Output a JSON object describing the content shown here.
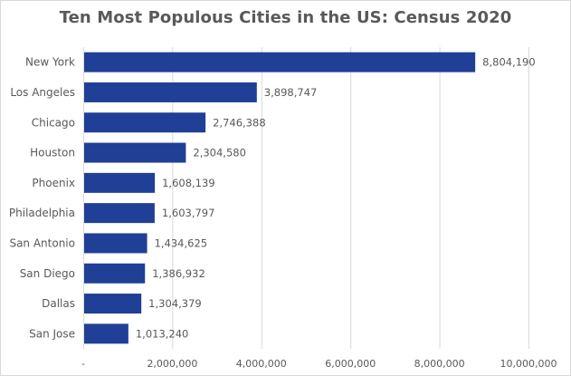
{
  "chart_data": {
    "type": "bar",
    "orientation": "horizontal",
    "title": "Ten Most Populous Cities in the US: Census 2020",
    "categories": [
      "New York",
      "Los Angeles",
      "Chicago",
      "Houston",
      "Phoenix",
      "Philadelphia",
      "San Antonio",
      "San Diego",
      "Dallas",
      "San Jose"
    ],
    "values": [
      8804190,
      3898747,
      2746388,
      2304580,
      1608139,
      1603797,
      1434625,
      1386932,
      1304379,
      1013240
    ],
    "data_labels": [
      "8,804,190",
      "3,898,747",
      "2,746,388",
      "2,304,580",
      "1,608,139",
      "1,603,797",
      "1,434,625",
      "1,386,932",
      "1,304,379",
      "1,013,240"
    ],
    "xlim": [
      0,
      10000000
    ],
    "x_ticks": [
      0,
      2000000,
      4000000,
      6000000,
      8000000,
      10000000
    ],
    "x_tick_labels": [
      "-",
      "2,000,000",
      "4,000,000",
      "6,000,000",
      "8,000,000",
      "10,000,000"
    ],
    "xlabel": "",
    "ylabel": "",
    "grid": "vertical",
    "legend": "none",
    "colors": {
      "bar": "#203f96",
      "grid": "#d9d9d9",
      "text": "#595959"
    }
  }
}
